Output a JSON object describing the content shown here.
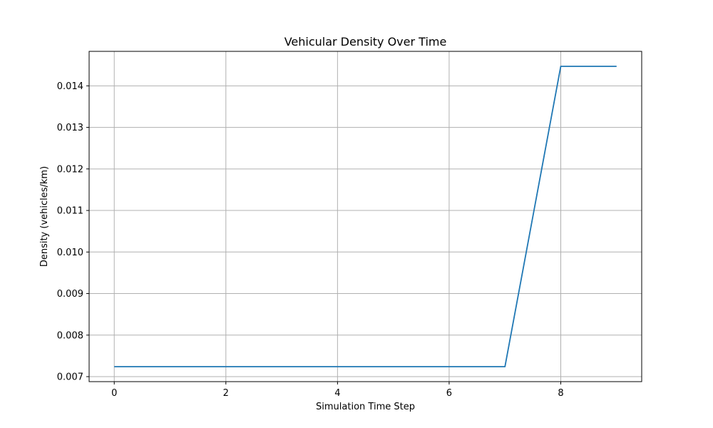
{
  "chart_data": {
    "type": "line",
    "title": "Vehicular Density Over Time",
    "xlabel": "Simulation Time Step",
    "ylabel": "Density (vehicles/km)",
    "x": [
      0,
      1,
      2,
      3,
      4,
      5,
      6,
      7,
      8,
      9
    ],
    "series": [
      {
        "values": [
          0.00724,
          0.00724,
          0.00724,
          0.00724,
          0.00724,
          0.00724,
          0.00724,
          0.00724,
          0.01447,
          0.01447
        ],
        "color": "#1f77b4"
      }
    ],
    "xlim": [
      -0.45,
      9.45
    ],
    "ylim": [
      0.00688,
      0.01483
    ],
    "xticks": [
      0,
      2,
      4,
      6,
      8
    ],
    "xtick_labels": [
      "0",
      "2",
      "4",
      "6",
      "8"
    ],
    "yticks": [
      0.007,
      0.008,
      0.009,
      0.01,
      0.011,
      0.012,
      0.013,
      0.014
    ],
    "ytick_labels": [
      "0.007",
      "0.008",
      "0.009",
      "0.010",
      "0.011",
      "0.012",
      "0.013",
      "0.014"
    ],
    "grid": true,
    "legend": false
  }
}
